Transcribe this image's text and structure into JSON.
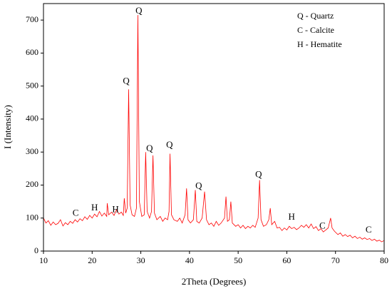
{
  "chart_data": {
    "type": "line",
    "xlabel": "2Theta (Degrees)",
    "ylabel": "I (Intensity)",
    "legend_text": [
      "Q - Quartz",
      "C - Calcite",
      "H - Hematite"
    ],
    "legend_position": "upper right",
    "xlim": [
      10,
      80
    ],
    "xticks": [
      10,
      20,
      30,
      40,
      50,
      60,
      70,
      80
    ],
    "ylim": [
      0,
      750
    ],
    "yticks": [
      0,
      100,
      200,
      300,
      400,
      500,
      600,
      700
    ],
    "grid": false,
    "x": [
      10,
      10.5,
      11,
      11.5,
      12,
      12.5,
      13,
      13.5,
      14,
      14.5,
      15,
      15.5,
      16,
      16.5,
      17,
      17.5,
      18,
      18.5,
      19,
      19.5,
      20,
      20.5,
      21,
      21.5,
      22,
      22.5,
      23,
      23.1,
      23.4,
      24,
      24.5,
      25,
      25.5,
      26,
      26.4,
      26.6,
      26.9,
      27.2,
      27.5,
      27.8,
      28.2,
      28.7,
      29.1,
      29.4,
      29.7,
      30.2,
      30.7,
      31,
      31.3,
      31.8,
      32.2,
      32.5,
      32.8,
      33.3,
      34,
      34.5,
      35,
      35.5,
      35.8,
      36,
      36.3,
      36.8,
      37.5,
      38,
      38.5,
      39.1,
      39.4,
      39.7,
      40.2,
      40.8,
      41.2,
      41.5,
      42,
      42.6,
      43.1,
      43.5,
      44,
      44.5,
      45,
      45.5,
      46,
      46.5,
      47.2,
      47.5,
      47.8,
      48.2,
      48.5,
      48.8,
      49.5,
      50,
      50.5,
      51,
      51.5,
      52,
      52.5,
      53,
      53.5,
      54.1,
      54.4,
      54.7,
      55.2,
      55.8,
      56.3,
      56.6,
      56.9,
      57.5,
      58,
      58.5,
      59,
      59.5,
      60,
      60.5,
      61,
      61.5,
      62,
      62.5,
      63,
      63.5,
      64,
      64.5,
      65,
      65.5,
      66,
      66.5,
      67,
      67.5,
      68,
      68.5,
      69,
      69.3,
      69.8,
      70.5,
      71,
      71.5,
      72,
      72.5,
      73,
      73.5,
      74,
      74.5,
      75,
      75.5,
      76,
      76.5,
      77,
      77.5,
      78,
      78.5,
      79,
      79.5,
      80
    ],
    "series": [
      {
        "color": "#ff0000",
        "values": [
          100,
          85,
          92,
          78,
          88,
          80,
          84,
          95,
          76,
          86,
          80,
          90,
          84,
          95,
          88,
          98,
          92,
          104,
          96,
          108,
          100,
          112,
          104,
          120,
          106,
          115,
          105,
          145,
          110,
          118,
          108,
          125,
          112,
          118,
          108,
          160,
          115,
          130,
          490,
          140,
          110,
          105,
          130,
          715,
          150,
          105,
          110,
          300,
          120,
          100,
          120,
          290,
          115,
          95,
          105,
          90,
          100,
          95,
          120,
          295,
          110,
          95,
          90,
          100,
          85,
          110,
          190,
          95,
          85,
          95,
          185,
          90,
          85,
          100,
          180,
          95,
          80,
          85,
          75,
          90,
          78,
          85,
          100,
          165,
          90,
          95,
          150,
          85,
          75,
          80,
          70,
          78,
          68,
          75,
          70,
          78,
          72,
          100,
          215,
          95,
          75,
          80,
          95,
          130,
          80,
          90,
          70,
          72,
          62,
          70,
          64,
          75,
          68,
          72,
          65,
          70,
          78,
          72,
          80,
          70,
          82,
          68,
          74,
          62,
          68,
          58,
          64,
          70,
          100,
          70,
          60,
          50,
          55,
          45,
          50,
          44,
          48,
          40,
          45,
          38,
          42,
          36,
          40,
          35,
          38,
          32,
          36,
          30,
          33,
          28,
          32
        ]
      }
    ],
    "annotations": [
      {
        "text": "C",
        "x": 16.6,
        "y": 113
      },
      {
        "text": "H",
        "x": 20.5,
        "y": 130
      },
      {
        "text": "H",
        "x": 24.8,
        "y": 124
      },
      {
        "text": "Q",
        "x": 27.0,
        "y": 513
      },
      {
        "text": "Q",
        "x": 29.6,
        "y": 726
      },
      {
        "text": "Q",
        "x": 31.8,
        "y": 309
      },
      {
        "text": "Q",
        "x": 35.9,
        "y": 320
      },
      {
        "text": "Q",
        "x": 41.9,
        "y": 196
      },
      {
        "text": "Q",
        "x": 54.2,
        "y": 230
      },
      {
        "text": "H",
        "x": 61.0,
        "y": 102
      },
      {
        "text": "C",
        "x": 67.3,
        "y": 74
      },
      {
        "text": "C",
        "x": 76.8,
        "y": 63
      }
    ]
  }
}
